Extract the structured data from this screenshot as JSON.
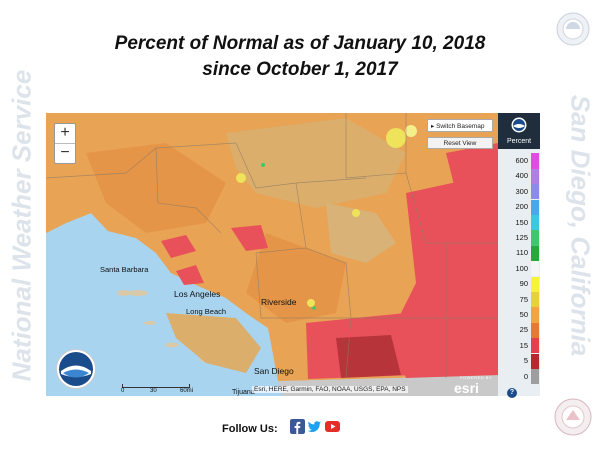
{
  "title_line1": "Percent of  Normal as of January 10, 2018",
  "title_line2": "since October 1, 2017",
  "side_left": "National Weather Service",
  "side_right": "San Diego, California",
  "map": {
    "zoom_in": "+",
    "zoom_out": "−",
    "switch_basemap": "Switch Basemap",
    "reset_view": "Reset View",
    "cities": {
      "santa_barbara": "Santa Barbara",
      "los_angeles": "Los Angeles",
      "long_beach": "Long Beach",
      "riverside": "Riverside",
      "san_diego": "San Diego",
      "tijuana": "Tijuana"
    },
    "scale": {
      "zero": "0",
      "mid": "30",
      "end": "60mi"
    },
    "attribution": "Esri, HERE, Garmin, FAO, NOAA, USGS, EPA, NPS",
    "esri_powered": "POWERED BY",
    "esri": "esri",
    "help_icon": "?"
  },
  "legend": {
    "title": "Percent",
    "items": [
      {
        "label": "600",
        "color": "#e04be0"
      },
      {
        "label": "400",
        "color": "#b07fe0"
      },
      {
        "label": "300",
        "color": "#8c8ce8"
      },
      {
        "label": "200",
        "color": "#4aa8e8"
      },
      {
        "label": "150",
        "color": "#3cc8e0"
      },
      {
        "label": "125",
        "color": "#3fc76a"
      },
      {
        "label": "110",
        "color": "#28a83c"
      },
      {
        "label": "100",
        "color": "#f5f5f5"
      },
      {
        "label": "90",
        "color": "#f7f23a"
      },
      {
        "label": "75",
        "color": "#e8d23a"
      },
      {
        "label": "50",
        "color": "#f0a540"
      },
      {
        "label": "25",
        "color": "#e57a35"
      },
      {
        "label": "15",
        "color": "#e8404a"
      },
      {
        "label": "5",
        "color": "#b8282f"
      },
      {
        "label": "0",
        "color": "#9e9e9e"
      }
    ]
  },
  "footer": {
    "follow_us": "Follow Us:",
    "facebook_color": "#3b5998",
    "twitter_color": "#1da1f2",
    "youtube_color": "#e52d27"
  }
}
